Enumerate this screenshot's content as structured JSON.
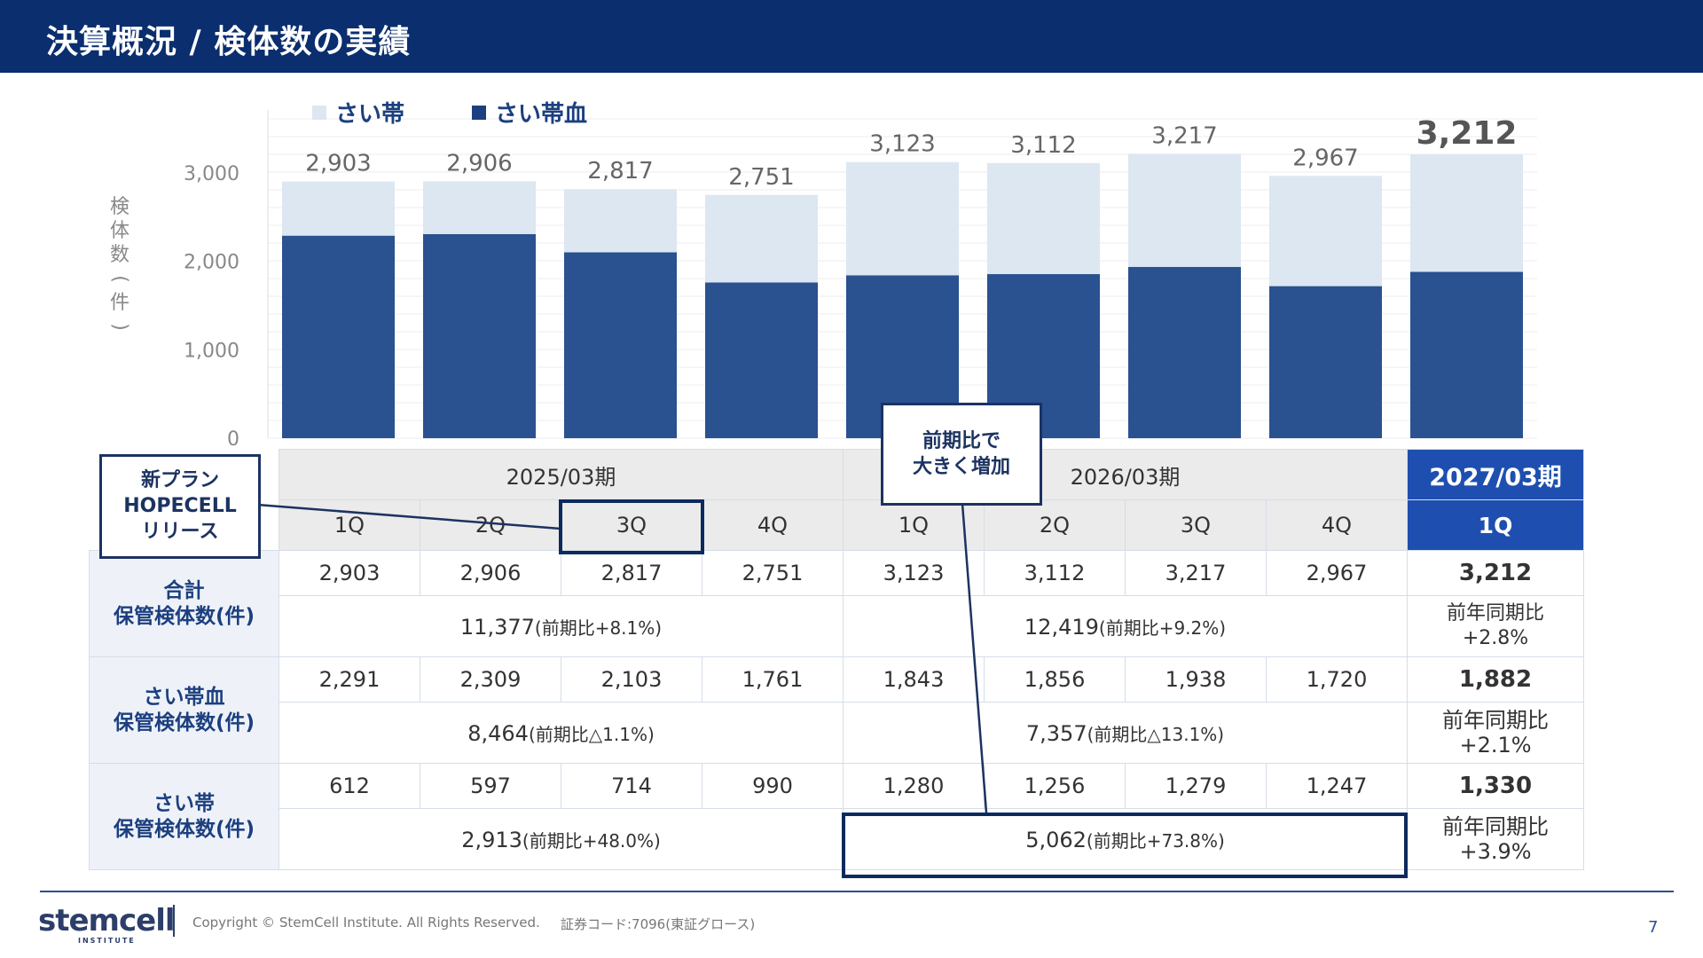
{
  "header": {
    "title": "決算概況 / 検体数の実績"
  },
  "chart_data": {
    "type": "bar",
    "stacked": true,
    "categories": [
      "2025/03期 1Q",
      "2025/03期 2Q",
      "2025/03期 3Q",
      "2025/03期 4Q",
      "2026/03期 1Q",
      "2026/03期 2Q",
      "2026/03期 3Q",
      "2026/03期 4Q",
      "2027/03期 1Q"
    ],
    "series": [
      {
        "name": "さい帯血",
        "color": "#2a5190",
        "values": [
          2291,
          2309,
          2103,
          1761,
          1843,
          1856,
          1938,
          1720,
          1882
        ]
      },
      {
        "name": "さい帯",
        "color": "#dde7f1",
        "values": [
          612,
          597,
          714,
          990,
          1280,
          1256,
          1279,
          1247,
          1330
        ]
      }
    ],
    "totals": [
      "2,903",
      "2,906",
      "2,817",
      "2,751",
      "3,123",
      "3,112",
      "3,217",
      "2,967",
      "3,212"
    ],
    "ylabel": "検体数(件)",
    "ylim": [
      0,
      3000
    ],
    "yticks": [
      "0",
      "1,000",
      "2,000",
      "3,000"
    ],
    "legend": [
      "さい帯",
      "さい帯血"
    ],
    "legend_position": "top-left",
    "grid": true
  },
  "table": {
    "periods": [
      "2025/03期",
      "2026/03期",
      "2027/03期"
    ],
    "quarters": [
      "1Q",
      "2Q",
      "3Q",
      "4Q",
      "1Q",
      "2Q",
      "3Q",
      "4Q",
      "1Q"
    ],
    "rows": [
      {
        "label": [
          "合計",
          "保管検体数(件)"
        ],
        "values": [
          "2,903",
          "2,906",
          "2,817",
          "2,751",
          "3,123",
          "3,112",
          "3,217",
          "2,967",
          "3,212"
        ],
        "sum1": "11,377",
        "sum1_note": "(前期比+8.1%)",
        "sum2": "12,419",
        "sum2_note": "(前期比+9.2%)",
        "yoy": [
          "前年同期比",
          "+2.8%"
        ]
      },
      {
        "label": [
          "さい帯血",
          "保管検体数(件)"
        ],
        "values": [
          "2,291",
          "2,309",
          "2,103",
          "1,761",
          "1,843",
          "1,856",
          "1,938",
          "1,720",
          "1,882"
        ],
        "sum1": "8,464",
        "sum1_note": "(前期比△1.1%)",
        "sum2": "7,357",
        "sum2_note": "(前期比△13.1%)",
        "yoy": [
          "前年同期比",
          "+2.1%"
        ]
      },
      {
        "label": [
          "さい帯",
          "保管検体数(件)"
        ],
        "values": [
          "612",
          "597",
          "714",
          "990",
          "1,280",
          "1,256",
          "1,279",
          "1,247",
          "1,330"
        ],
        "sum1": "2,913",
        "sum1_note": "(前期比+48.0%)",
        "sum2": "5,062",
        "sum2_note": "(前期比+73.8%)",
        "yoy": [
          "前年同期比",
          "+3.9%"
        ]
      }
    ]
  },
  "callouts": {
    "hopecell": [
      "新プラン",
      "HOPECELL",
      "リリース"
    ],
    "increase": [
      "前期比で",
      "大きく増加"
    ]
  },
  "footer": {
    "logo": "stemcell",
    "logo_sub": "INSTITUTE",
    "copyright": "Copyright © StemCell Institute. All Rights Reserved.",
    "code": "証券コード:7096(東証グロース)",
    "page": "7"
  }
}
